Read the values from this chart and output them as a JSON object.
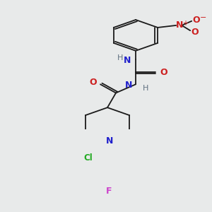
{
  "bg": "#e8eaea",
  "fig_w": 3.0,
  "fig_h": 3.0,
  "dpi": 100,
  "bond_color": "#1a1a1a",
  "lw": 1.3,
  "colors": {
    "C": "#1a1a1a",
    "N": "#2020cc",
    "H": "#607080",
    "O": "#cc2020",
    "Cl": "#22aa22",
    "F": "#cc44cc",
    "NO2_N": "#cc2020",
    "NO2_O": "#cc2020"
  }
}
